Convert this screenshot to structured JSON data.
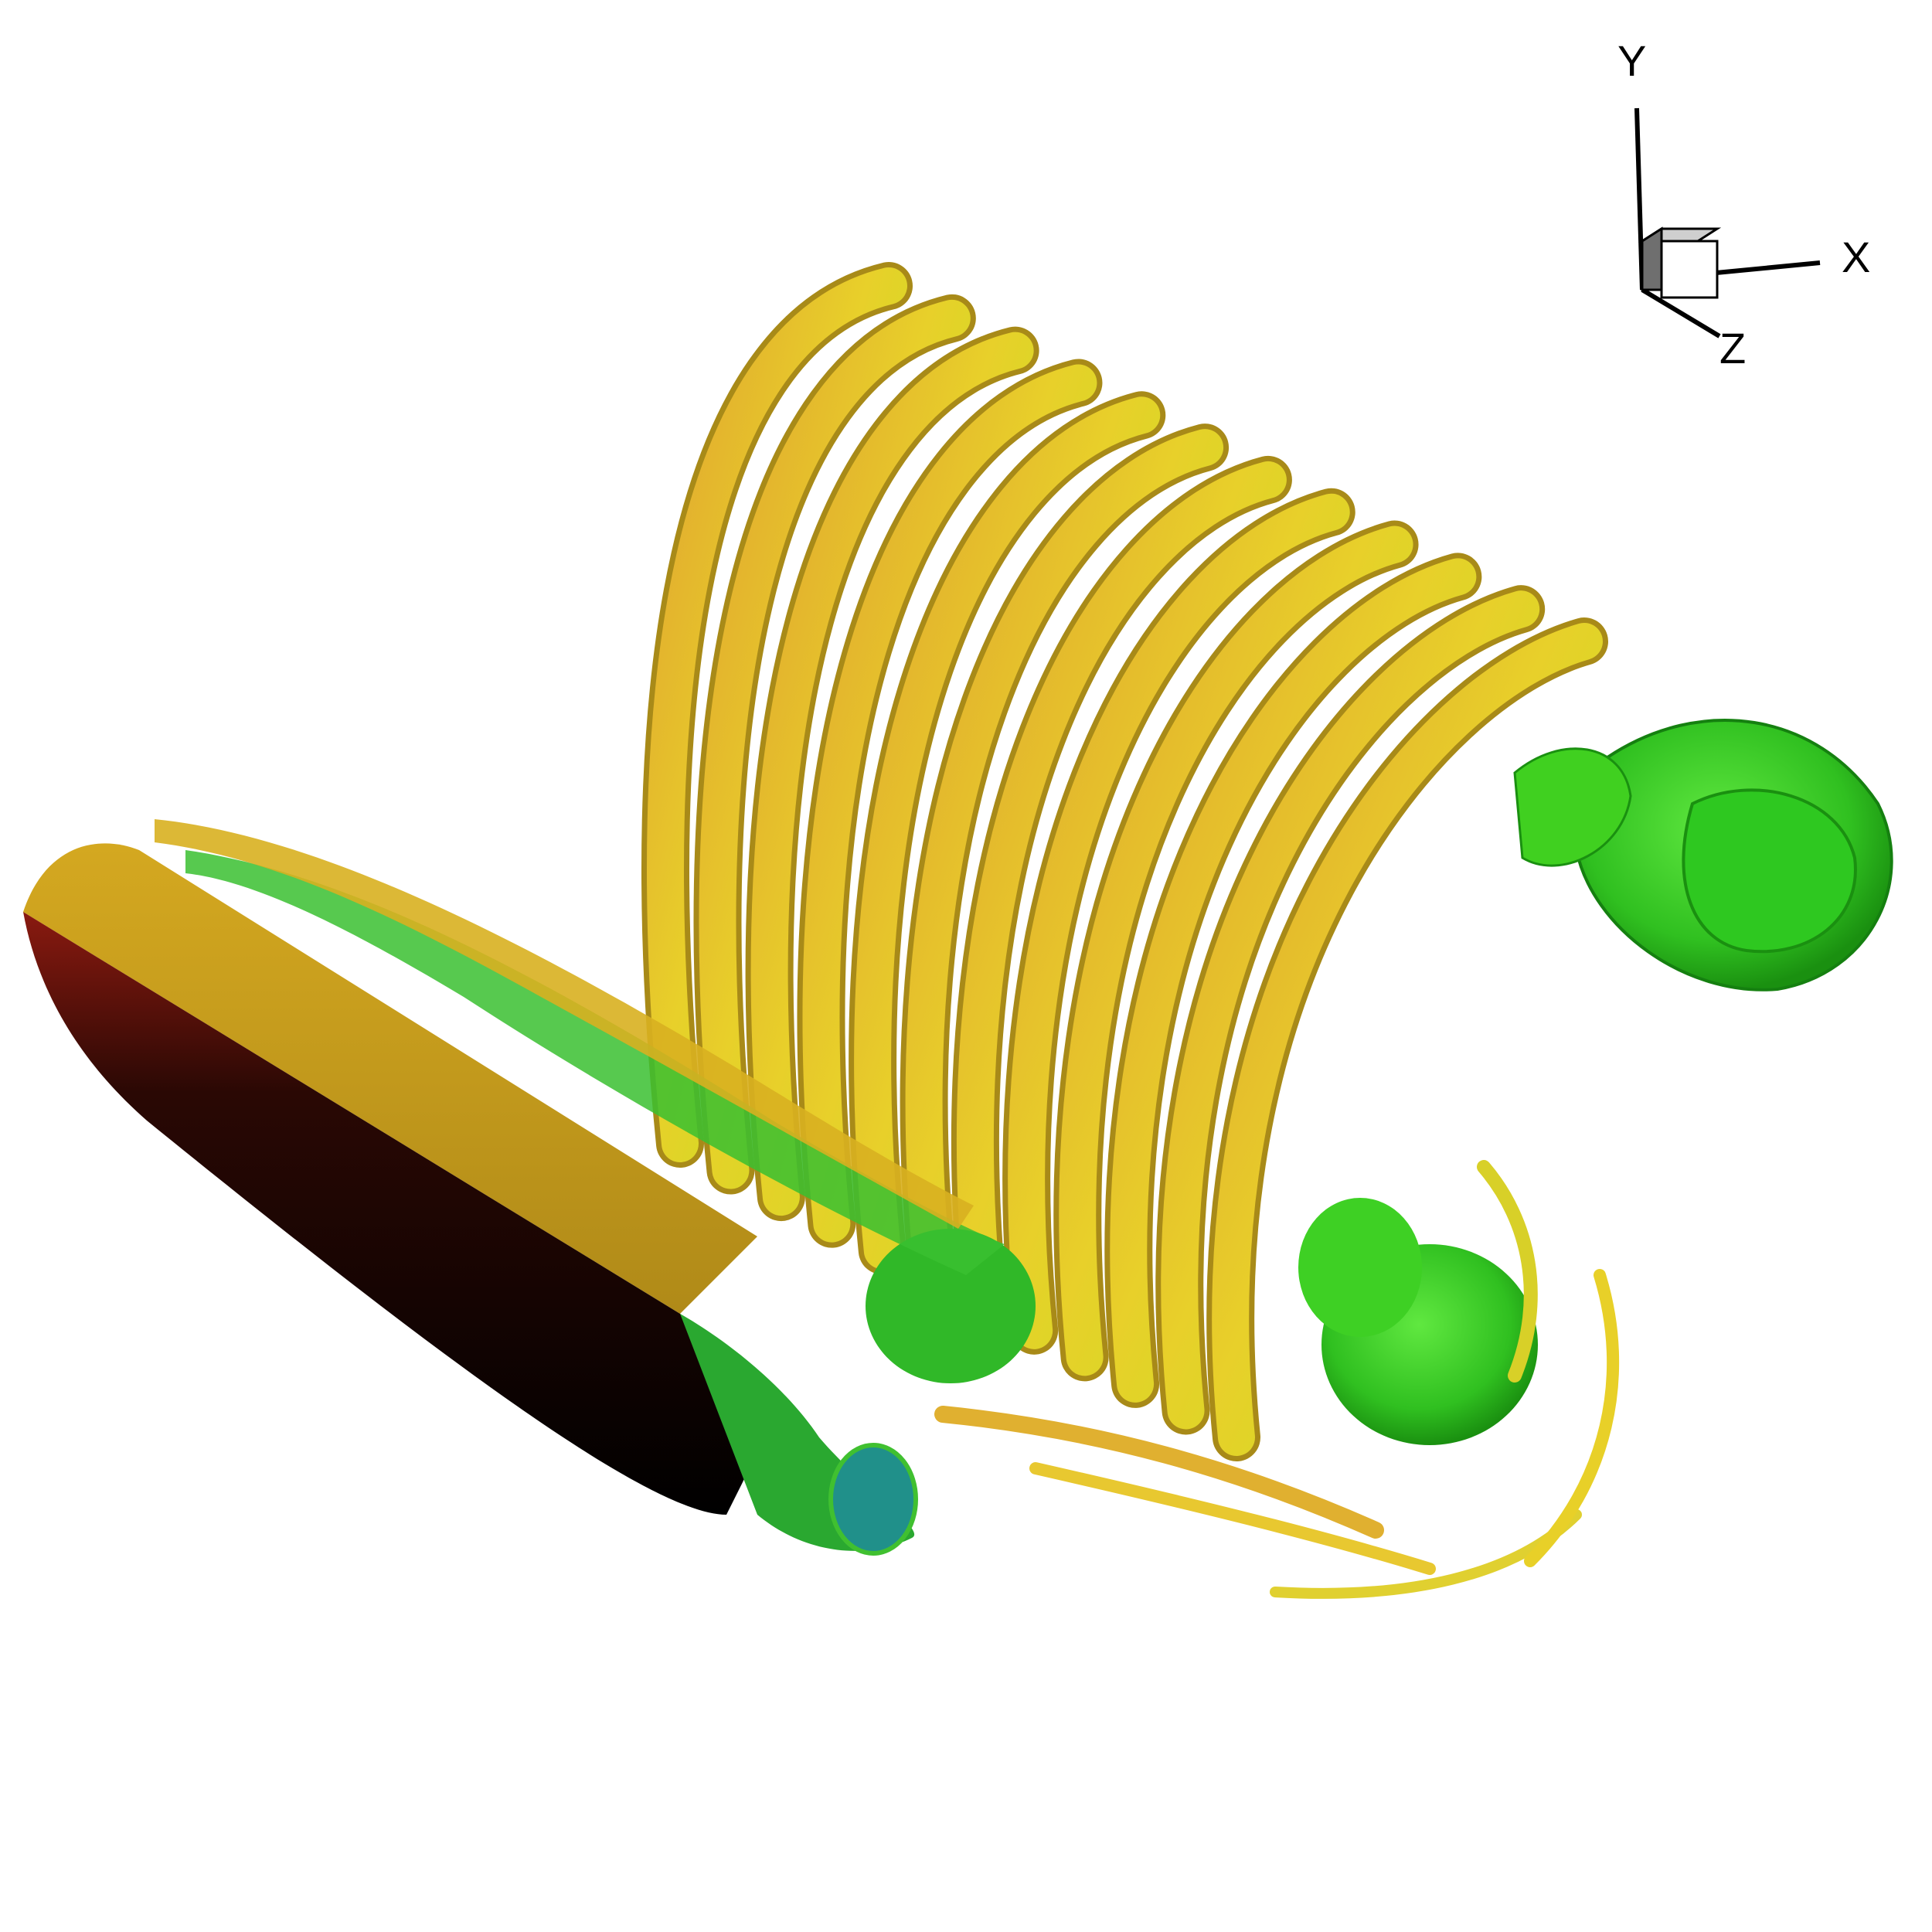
{
  "axis_triad": {
    "x_label": "X",
    "y_label": "Y",
    "z_label": "Z"
  },
  "colors": {
    "background": "#ffffff",
    "vortex_yellow": "#e8d828",
    "vortex_orange": "#e0a030",
    "vortex_green": "#40d020",
    "airfoil_gold": "#c8a020",
    "airfoil_dark": "#000000"
  },
  "scene": {
    "description_icon": "vortex-isosurface-render",
    "vortex_tube_count": 12
  }
}
